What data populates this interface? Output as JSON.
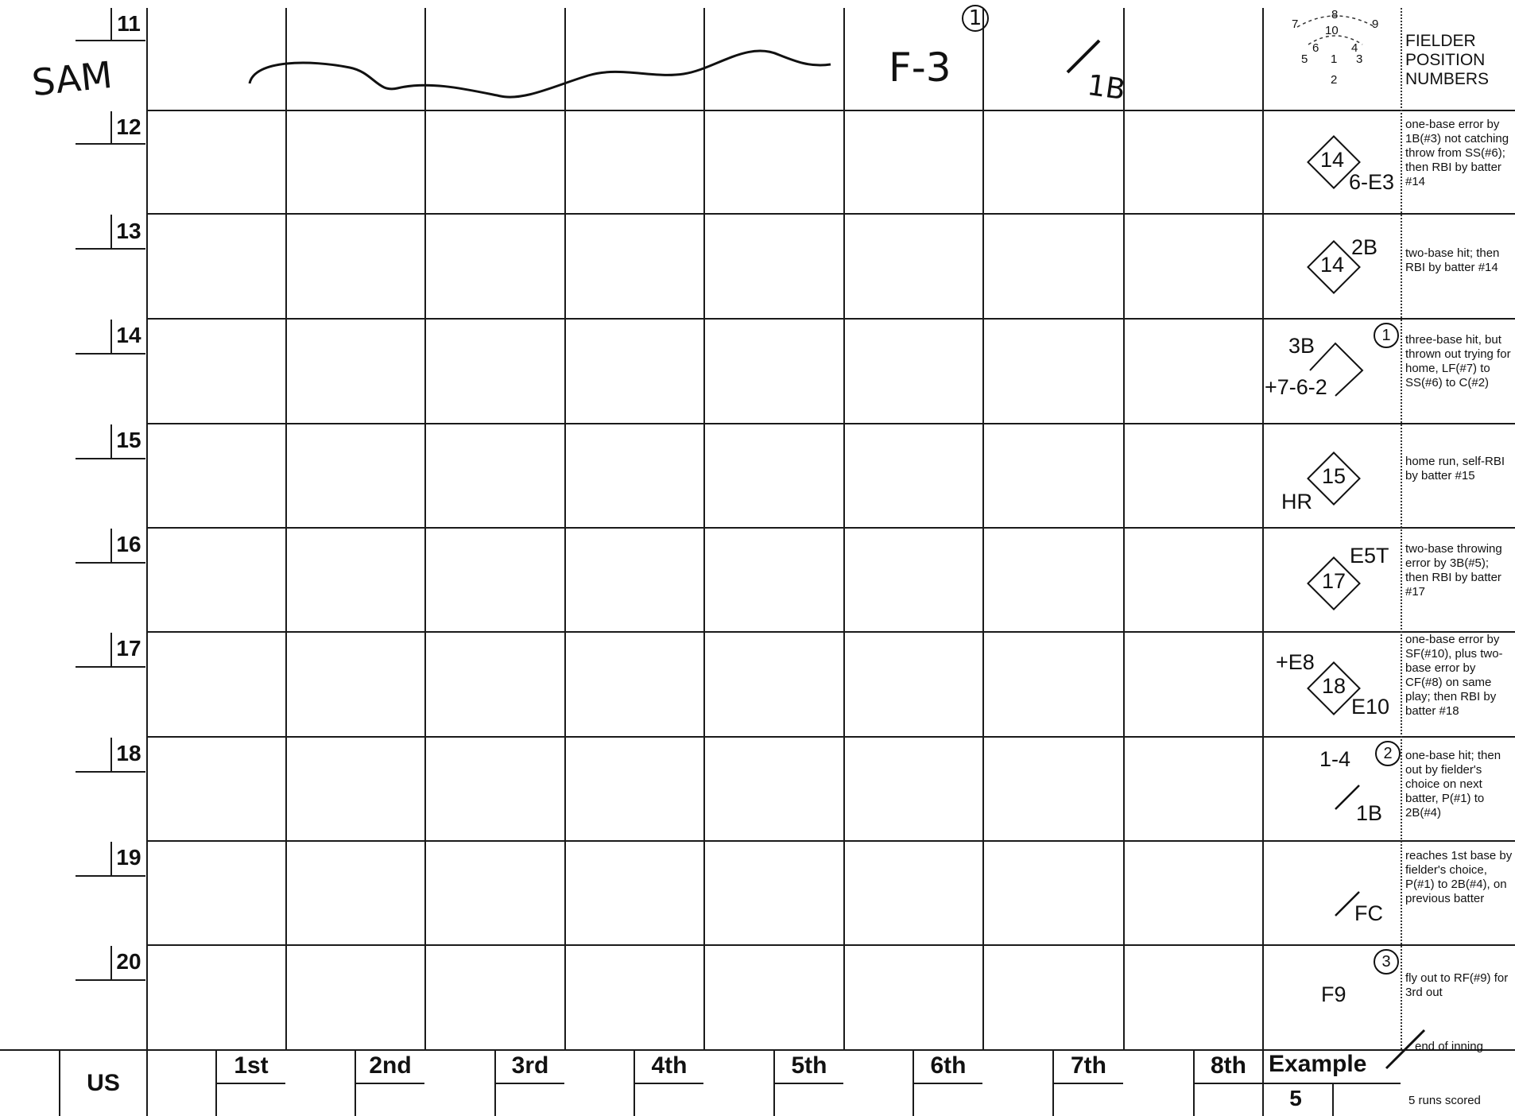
{
  "rows": [
    {
      "number": "11"
    },
    {
      "number": "12"
    },
    {
      "number": "13"
    },
    {
      "number": "14"
    },
    {
      "number": "15"
    },
    {
      "number": "16"
    },
    {
      "number": "17"
    },
    {
      "number": "18"
    },
    {
      "number": "19"
    },
    {
      "number": "20"
    }
  ],
  "handwriting": {
    "player_name": "SAM",
    "play1": "F-3",
    "play1_out": "1",
    "play2": "1B"
  },
  "fielder_diagram": {
    "positions": [
      "7",
      "8",
      "9",
      "10",
      "6",
      "4",
      "5",
      "1",
      "3",
      "2"
    ],
    "title": "FIELDER POSITION NUMBERS"
  },
  "examples": [
    {
      "diamond": "14",
      "marks": [
        "6-E3"
      ],
      "note": "one-base error by 1B(#3) not catching throw from SS(#6); then RBI by batter #14"
    },
    {
      "diamond": "14",
      "marks": [
        "2B"
      ],
      "note": "two-base hit; then RBI by batter #14"
    },
    {
      "diamond": "",
      "marks": [
        "3B",
        "+7-6-2"
      ],
      "out": "1",
      "note": "three-base hit, but thrown out trying for home, LF(#7) to SS(#6) to C(#2)"
    },
    {
      "diamond": "15",
      "marks": [
        "HR"
      ],
      "note": "home run, self-RBI by batter #15"
    },
    {
      "diamond": "17",
      "marks": [
        "E5T"
      ],
      "note": "two-base throwing error by 3B(#5); then RBI by batter #17"
    },
    {
      "diamond": "18",
      "marks": [
        "+E8",
        "E10"
      ],
      "note": "one-base error by SF(#10), plus two-base error by CF(#8) on same play; then RBI by batter #18"
    },
    {
      "diamond": "",
      "marks": [
        "1-4",
        "1B"
      ],
      "out": "2",
      "note": "one-base hit; then out by fielder's choice on next batter, P(#1) to 2B(#4)"
    },
    {
      "diamond": "",
      "marks": [
        "FC"
      ],
      "note": "reaches 1st base by fielder's choice, P(#1) to 2B(#4), on previous batter"
    },
    {
      "diamond": "",
      "marks": [
        "F9"
      ],
      "out": "3",
      "note": "fly out to RF(#9) for 3rd out"
    }
  ],
  "footer": {
    "team": "US",
    "innings": [
      "1st",
      "2nd",
      "3rd",
      "4th",
      "5th",
      "6th",
      "7th",
      "8th"
    ],
    "example_label": "Example",
    "example_runs": "5",
    "end_of_inning": "end of inning",
    "runs_scored": "5 runs scored"
  }
}
